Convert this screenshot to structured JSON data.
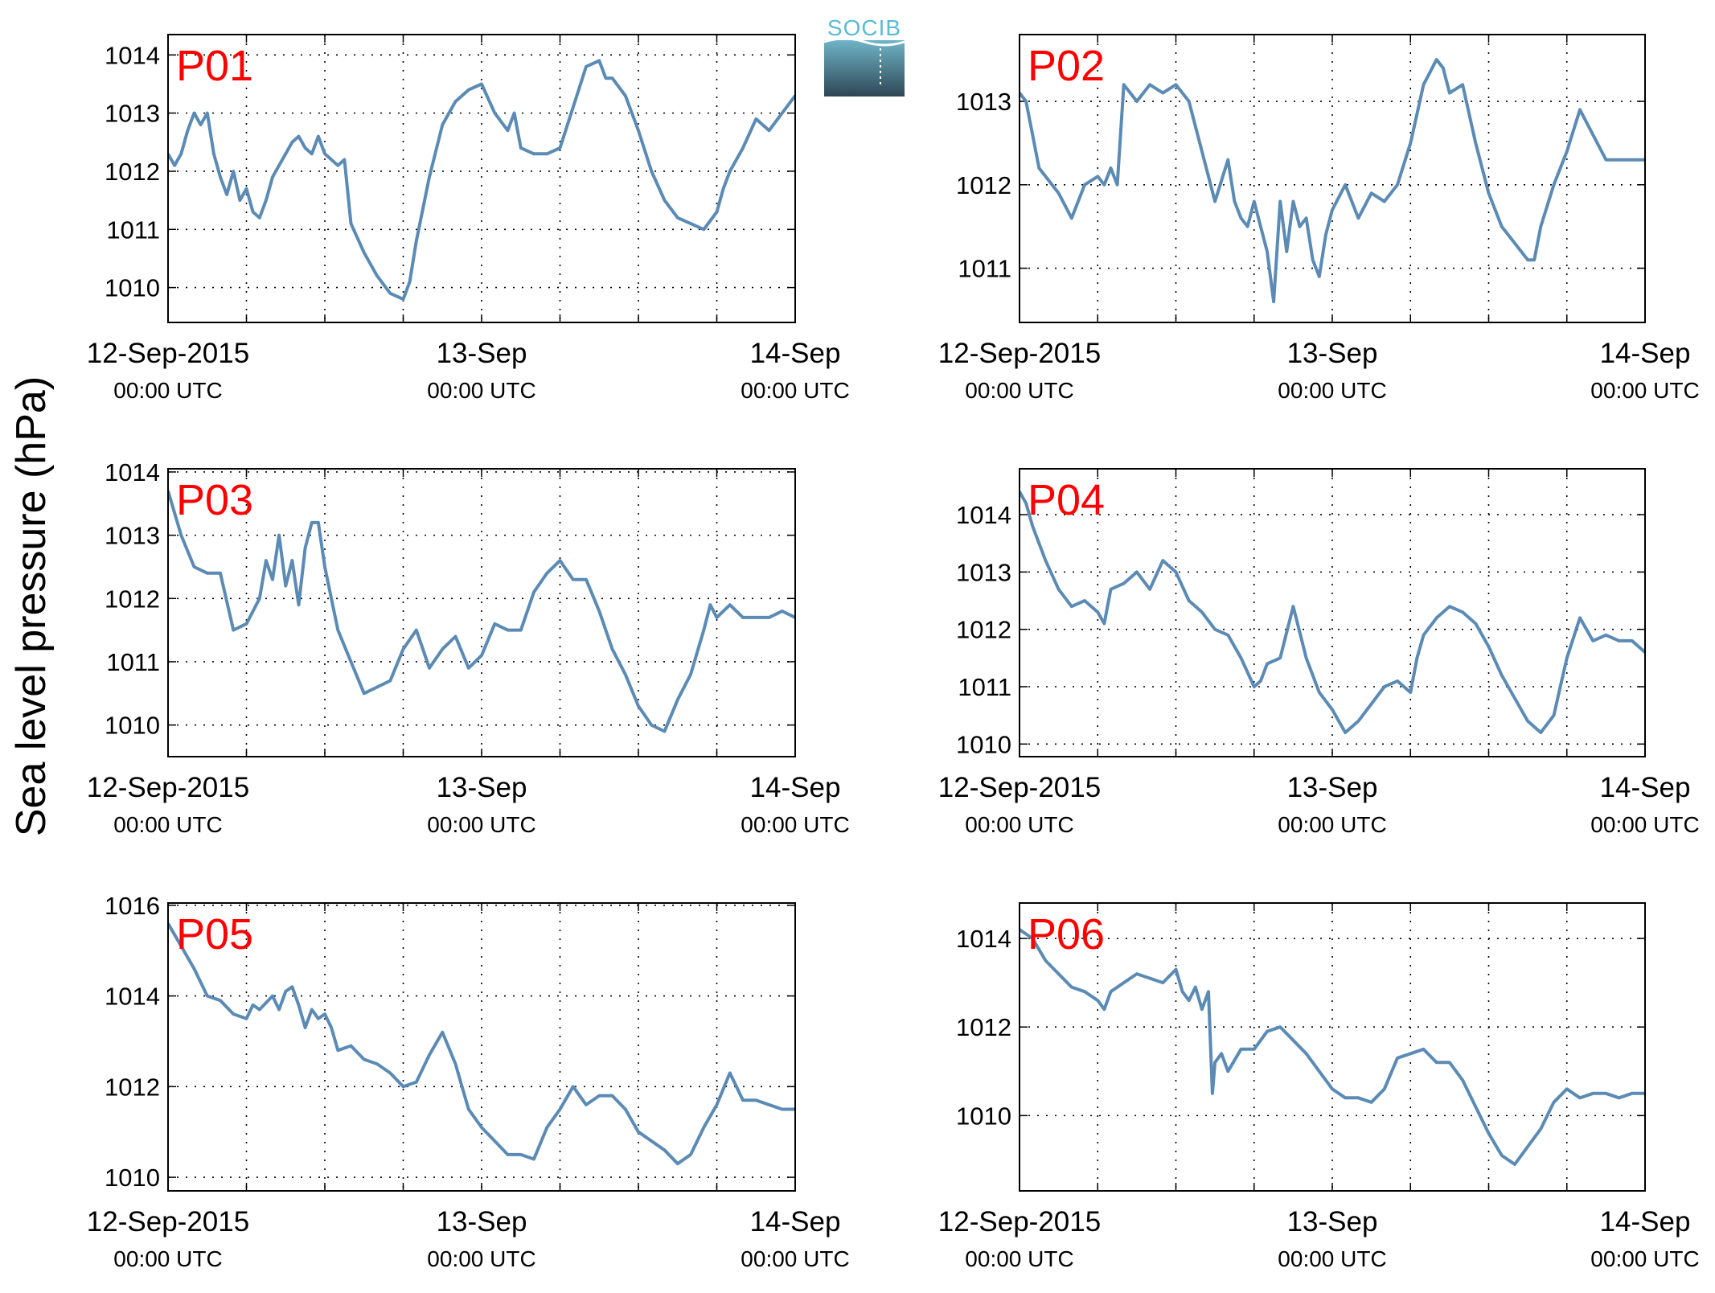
{
  "ylabel": "Sea level pressure (hPa)",
  "logo": {
    "text": "SOCIB",
    "colors": {
      "text": "#5bbad5",
      "top": "#6fb5c8",
      "bottom": "#2e4654"
    }
  },
  "colors": {
    "line": "#5b8bb5",
    "label": "#ff0000",
    "grid": "#000000"
  },
  "x_tick_labels": [
    {
      "date": "12-Sep-2015",
      "time": "00:00 UTC"
    },
    {
      "date": "13-Sep",
      "time": "00:00 UTC"
    },
    {
      "date": "14-Sep",
      "time": "00:00 UTC"
    }
  ],
  "chart_data": [
    {
      "type": "line",
      "id": "P01",
      "x_unit": "hours since 12-Sep-2015 00:00 UTC",
      "xlim": [
        0,
        48
      ],
      "ylim": [
        1009.4,
        1014.35
      ],
      "yticks": [
        1010,
        1011,
        1012,
        1013,
        1014
      ],
      "grid": true,
      "series": [
        {
          "x": [
            0,
            0.5,
            1,
            1.5,
            2,
            2.5,
            3,
            3.5,
            4,
            4.5,
            5,
            5.5,
            6,
            6.5,
            7,
            7.5,
            8,
            8.5,
            9,
            9.5,
            10,
            10.5,
            11,
            11.5,
            12,
            12.5,
            13,
            13.5,
            14,
            15,
            16,
            17,
            18,
            18.5,
            19,
            20,
            21,
            22,
            23,
            24,
            25,
            26,
            26.5,
            27,
            28,
            29,
            30,
            31,
            32,
            33,
            33.5,
            34,
            35,
            36,
            37,
            38,
            39,
            40,
            41,
            42,
            42.5,
            43,
            44,
            45,
            46,
            47,
            48
          ],
          "y": [
            1012.3,
            1012.1,
            1012.3,
            1012.7,
            1013.0,
            1012.8,
            1013.0,
            1012.3,
            1011.9,
            1011.6,
            1012.0,
            1011.5,
            1011.7,
            1011.3,
            1011.2,
            1011.5,
            1011.9,
            1012.1,
            1012.3,
            1012.5,
            1012.6,
            1012.4,
            1012.3,
            1012.6,
            1012.3,
            1012.2,
            1012.1,
            1012.2,
            1011.1,
            1010.6,
            1010.2,
            1009.9,
            1009.8,
            1010.1,
            1010.8,
            1011.9,
            1012.8,
            1013.2,
            1013.4,
            1013.5,
            1013.0,
            1012.7,
            1013.0,
            1012.4,
            1012.3,
            1012.3,
            1012.4,
            1013.1,
            1013.8,
            1013.9,
            1013.6,
            1013.6,
            1013.3,
            1012.7,
            1012.0,
            1011.5,
            1011.2,
            1011.1,
            1011.0,
            1011.3,
            1011.7,
            1012.0,
            1012.4,
            1012.9,
            1012.7,
            1013.0,
            1013.3
          ]
        }
      ]
    },
    {
      "type": "line",
      "id": "P02",
      "x_unit": "hours since 12-Sep-2015 00:00 UTC",
      "xlim": [
        0,
        48
      ],
      "ylim": [
        1010.35,
        1013.8
      ],
      "yticks": [
        1011,
        1012,
        1013
      ],
      "grid": true,
      "series": [
        {
          "x": [
            0,
            0.5,
            1,
            1.5,
            2,
            3,
            4,
            5,
            6,
            6.5,
            7,
            7.5,
            8,
            8.5,
            9,
            10,
            11,
            12,
            13,
            14,
            15,
            16,
            16.5,
            17,
            17.5,
            18,
            18.5,
            19,
            19.5,
            20,
            20.5,
            21,
            21.5,
            22,
            22.5,
            23,
            23.5,
            24,
            25,
            26,
            27,
            28,
            29,
            30,
            31,
            32,
            32.5,
            33,
            34,
            35,
            36,
            37,
            38,
            39,
            39.5,
            40,
            41,
            42,
            43,
            44,
            45,
            46,
            47,
            48
          ],
          "y": [
            1013.1,
            1013.0,
            1012.6,
            1012.2,
            1012.1,
            1011.9,
            1011.6,
            1012.0,
            1012.1,
            1012.0,
            1012.2,
            1012.0,
            1013.2,
            1013.1,
            1013.0,
            1013.2,
            1013.1,
            1013.2,
            1013.0,
            1012.4,
            1011.8,
            1012.3,
            1011.8,
            1011.6,
            1011.5,
            1011.8,
            1011.5,
            1011.2,
            1010.6,
            1011.8,
            1011.2,
            1011.8,
            1011.5,
            1011.6,
            1011.1,
            1010.9,
            1011.4,
            1011.7,
            1012.0,
            1011.6,
            1011.9,
            1011.8,
            1012.0,
            1012.5,
            1013.2,
            1013.5,
            1013.4,
            1013.1,
            1013.2,
            1012.5,
            1011.9,
            1011.5,
            1011.3,
            1011.1,
            1011.1,
            1011.5,
            1012.0,
            1012.4,
            1012.9,
            1012.6,
            1012.3,
            1012.3,
            1012.3,
            1012.3
          ]
        }
      ]
    },
    {
      "type": "line",
      "id": "P03",
      "x_unit": "hours since 12-Sep-2015 00:00 UTC",
      "xlim": [
        0,
        48
      ],
      "ylim": [
        1009.5,
        1014.05
      ],
      "yticks": [
        1010,
        1011,
        1012,
        1013,
        1014
      ],
      "grid": true,
      "series": [
        {
          "x": [
            0,
            1,
            2,
            3,
            4,
            5,
            6,
            7,
            7.5,
            8,
            8.5,
            9,
            9.5,
            10,
            10.5,
            11,
            11.5,
            12,
            12.5,
            13,
            14,
            15,
            16,
            17,
            18,
            19,
            20,
            21,
            22,
            23,
            24,
            25,
            26,
            27,
            28,
            29,
            30,
            31,
            32,
            33,
            34,
            35,
            36,
            37,
            38,
            39,
            40,
            41,
            41.5,
            42,
            43,
            44,
            45,
            46,
            47,
            48
          ],
          "y": [
            1013.7,
            1013.0,
            1012.5,
            1012.4,
            1012.4,
            1011.5,
            1011.6,
            1012.0,
            1012.6,
            1012.3,
            1013.0,
            1012.2,
            1012.6,
            1011.9,
            1012.8,
            1013.2,
            1013.2,
            1012.5,
            1012.0,
            1011.5,
            1011.0,
            1010.5,
            1010.6,
            1010.7,
            1011.2,
            1011.5,
            1010.9,
            1011.2,
            1011.4,
            1010.9,
            1011.1,
            1011.6,
            1011.5,
            1011.5,
            1012.1,
            1012.4,
            1012.6,
            1012.3,
            1012.3,
            1011.8,
            1011.2,
            1010.8,
            1010.3,
            1010.0,
            1009.9,
            1010.4,
            1010.8,
            1011.5,
            1011.9,
            1011.7,
            1011.9,
            1011.7,
            1011.7,
            1011.7,
            1011.8,
            1011.7
          ]
        }
      ]
    },
    {
      "type": "line",
      "id": "P04",
      "x_unit": "hours since 12-Sep-2015 00:00 UTC",
      "xlim": [
        0,
        48
      ],
      "ylim": [
        1009.78,
        1014.8
      ],
      "yticks": [
        1010,
        1011,
        1012,
        1013,
        1014
      ],
      "grid": true,
      "series": [
        {
          "x": [
            0,
            0.5,
            1,
            2,
            3,
            4,
            5,
            6,
            6.5,
            7,
            8,
            9,
            10,
            11,
            12,
            13,
            14,
            15,
            16,
            17,
            18,
            18.5,
            19,
            20,
            21,
            22,
            23,
            24,
            25,
            26,
            27,
            28,
            29,
            30,
            30.5,
            31,
            32,
            33,
            34,
            35,
            36,
            37,
            38,
            39,
            40,
            41,
            41.5,
            42,
            43,
            44,
            45,
            46,
            47,
            48
          ],
          "y": [
            1014.4,
            1014.2,
            1013.8,
            1013.2,
            1012.7,
            1012.4,
            1012.5,
            1012.3,
            1012.1,
            1012.7,
            1012.8,
            1013.0,
            1012.7,
            1013.2,
            1013.0,
            1012.5,
            1012.3,
            1012.0,
            1011.9,
            1011.5,
            1011.0,
            1011.1,
            1011.4,
            1011.5,
            1012.4,
            1011.5,
            1010.9,
            1010.6,
            1010.2,
            1010.4,
            1010.7,
            1011.0,
            1011.1,
            1010.9,
            1011.5,
            1011.9,
            1012.2,
            1012.4,
            1012.3,
            1012.1,
            1011.7,
            1011.2,
            1010.8,
            1010.4,
            1010.2,
            1010.5,
            1011.0,
            1011.5,
            1012.2,
            1011.8,
            1011.9,
            1011.8,
            1011.8,
            1011.6
          ]
        }
      ]
    },
    {
      "type": "line",
      "id": "P05",
      "x_unit": "hours since 12-Sep-2015 00:00 UTC",
      "xlim": [
        0,
        48
      ],
      "ylim": [
        1009.7,
        1016.05
      ],
      "yticks": [
        1010,
        1012,
        1014,
        1016
      ],
      "grid": true,
      "series": [
        {
          "x": [
            0,
            1,
            2,
            3,
            4,
            5,
            6,
            6.5,
            7,
            8,
            8.5,
            9,
            9.5,
            10,
            10.5,
            11,
            11.5,
            12,
            12.5,
            13,
            14,
            15,
            16,
            17,
            18,
            19,
            20,
            21,
            22,
            22.5,
            23,
            24,
            25,
            26,
            27,
            28,
            29,
            30,
            31,
            32,
            33,
            34,
            35,
            36,
            37,
            38,
            39,
            40,
            41,
            42,
            43,
            44,
            45,
            46,
            47,
            48
          ],
          "y": [
            1015.6,
            1015.1,
            1014.6,
            1014.0,
            1013.9,
            1013.6,
            1013.5,
            1013.8,
            1013.7,
            1014.0,
            1013.7,
            1014.1,
            1014.2,
            1013.8,
            1013.3,
            1013.7,
            1013.5,
            1013.6,
            1013.3,
            1012.8,
            1012.9,
            1012.6,
            1012.5,
            1012.3,
            1012.0,
            1012.1,
            1012.7,
            1013.2,
            1012.5,
            1012.0,
            1011.5,
            1011.1,
            1010.8,
            1010.5,
            1010.5,
            1010.4,
            1011.1,
            1011.5,
            1012.0,
            1011.6,
            1011.8,
            1011.8,
            1011.5,
            1011.0,
            1010.8,
            1010.6,
            1010.3,
            1010.5,
            1011.1,
            1011.6,
            1012.3,
            1011.7,
            1011.7,
            1011.6,
            1011.5,
            1011.5
          ]
        }
      ]
    },
    {
      "type": "line",
      "id": "P06",
      "x_unit": "hours since 12-Sep-2015 00:00 UTC",
      "xlim": [
        0,
        48
      ],
      "ylim": [
        1008.3,
        1014.8
      ],
      "yticks": [
        1010,
        1012,
        1014
      ],
      "grid": true,
      "series": [
        {
          "x": [
            0,
            1,
            2,
            3,
            4,
            5,
            6,
            6.5,
            7,
            8,
            9,
            10,
            11,
            12,
            12.5,
            13,
            13.5,
            14,
            14.5,
            14.8,
            15,
            15.5,
            16,
            17,
            18,
            19,
            20,
            21,
            22,
            23,
            24,
            25,
            26,
            27,
            28,
            29,
            30,
            31,
            32,
            33,
            34,
            35,
            36,
            37,
            38,
            39,
            40,
            41,
            42,
            43,
            44,
            45,
            46,
            47,
            48
          ],
          "y": [
            1014.2,
            1014.0,
            1013.5,
            1013.2,
            1012.9,
            1012.8,
            1012.6,
            1012.4,
            1012.8,
            1013.0,
            1013.2,
            1013.1,
            1013.0,
            1013.3,
            1012.8,
            1012.6,
            1012.9,
            1012.4,
            1012.8,
            1010.5,
            1011.2,
            1011.4,
            1011.0,
            1011.5,
            1011.5,
            1011.9,
            1012.0,
            1011.7,
            1011.4,
            1011.0,
            1010.6,
            1010.4,
            1010.4,
            1010.3,
            1010.6,
            1011.3,
            1011.4,
            1011.5,
            1011.2,
            1011.2,
            1010.8,
            1010.2,
            1009.6,
            1009.1,
            1008.9,
            1009.3,
            1009.7,
            1010.3,
            1010.6,
            1010.4,
            1010.5,
            1010.5,
            1010.4,
            1010.5,
            1010.5
          ]
        }
      ]
    }
  ]
}
